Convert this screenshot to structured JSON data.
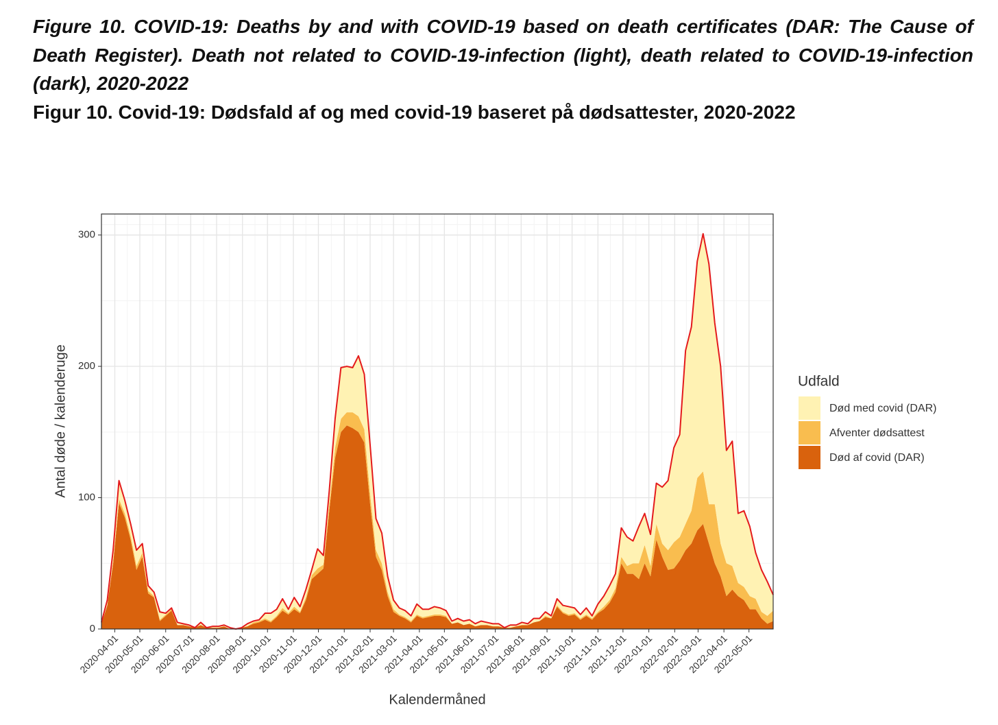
{
  "chart_data": {
    "type": "stacked-area",
    "title": "Figure 10. COVID-19: Deaths by and with COVID-19 based on death certificates (DAR: The Cause of Death Register). Death not related to COVID-19-infection (light), death related to COVID-19-infection (dark), 2020-2022",
    "subtitle": "Figur 10. Covid-19: Dødsfald af og med covid-19 baseret på dødsattester, 2020-2022",
    "x_label": "Kalendermåned",
    "y_label": "Antal døde / kalenderuge",
    "legend_title": "Udfald",
    "x": [
      "2020-03-16",
      "2020-03-23",
      "2020-03-30",
      "2020-04-06",
      "2020-04-13",
      "2020-04-20",
      "2020-04-27",
      "2020-05-04",
      "2020-05-11",
      "2020-05-18",
      "2020-05-25",
      "2020-06-01",
      "2020-06-08",
      "2020-06-15",
      "2020-06-22",
      "2020-06-29",
      "2020-07-06",
      "2020-07-13",
      "2020-07-20",
      "2020-07-27",
      "2020-08-03",
      "2020-08-10",
      "2020-08-17",
      "2020-08-24",
      "2020-08-31",
      "2020-09-07",
      "2020-09-14",
      "2020-09-21",
      "2020-09-28",
      "2020-10-05",
      "2020-10-12",
      "2020-10-19",
      "2020-10-26",
      "2020-11-02",
      "2020-11-09",
      "2020-11-16",
      "2020-11-23",
      "2020-11-30",
      "2020-12-07",
      "2020-12-14",
      "2020-12-21",
      "2020-12-28",
      "2021-01-04",
      "2021-01-11",
      "2021-01-18",
      "2021-01-25",
      "2021-02-01",
      "2021-02-08",
      "2021-02-15",
      "2021-02-22",
      "2021-03-01",
      "2021-03-08",
      "2021-03-15",
      "2021-03-22",
      "2021-03-29",
      "2021-04-05",
      "2021-04-12",
      "2021-04-19",
      "2021-04-26",
      "2021-05-03",
      "2021-05-10",
      "2021-05-17",
      "2021-05-24",
      "2021-05-31",
      "2021-06-07",
      "2021-06-14",
      "2021-06-21",
      "2021-06-28",
      "2021-07-05",
      "2021-07-12",
      "2021-07-19",
      "2021-07-26",
      "2021-08-02",
      "2021-08-09",
      "2021-08-16",
      "2021-08-23",
      "2021-08-30",
      "2021-09-06",
      "2021-09-13",
      "2021-09-20",
      "2021-09-27",
      "2021-10-04",
      "2021-10-11",
      "2021-10-18",
      "2021-10-25",
      "2021-11-01",
      "2021-11-08",
      "2021-11-15",
      "2021-11-22",
      "2021-11-29",
      "2021-12-06",
      "2021-12-13",
      "2021-12-20",
      "2021-12-27",
      "2022-01-03",
      "2022-01-10",
      "2022-01-17",
      "2022-01-24",
      "2022-01-31",
      "2022-02-07",
      "2022-02-14",
      "2022-02-21",
      "2022-02-28",
      "2022-03-07",
      "2022-03-14",
      "2022-03-21",
      "2022-03-28",
      "2022-04-04",
      "2022-04-11",
      "2022-04-18",
      "2022-04-25",
      "2022-05-02",
      "2022-05-09",
      "2022-05-16",
      "2022-05-23",
      "2022-05-30"
    ],
    "series": [
      {
        "name": "Død af covid (DAR)",
        "color": "#d9620d",
        "values": [
          4,
          18,
          50,
          96,
          85,
          68,
          45,
          55,
          27,
          24,
          6,
          10,
          14,
          3,
          3,
          2,
          1,
          3,
          1,
          1,
          1,
          2,
          0,
          0,
          1,
          2,
          4,
          5,
          7,
          5,
          9,
          14,
          11,
          15,
          12,
          22,
          38,
          42,
          46,
          90,
          130,
          150,
          155,
          153,
          150,
          142,
          95,
          55,
          45,
          25,
          13,
          10,
          8,
          5,
          10,
          8,
          9,
          10,
          10,
          9,
          4,
          5,
          3,
          4,
          2,
          3,
          3,
          2,
          2,
          1,
          1,
          2,
          3,
          3,
          5,
          6,
          9,
          8,
          17,
          12,
          10,
          11,
          7,
          10,
          7,
          12,
          15,
          20,
          28,
          50,
          42,
          42,
          38,
          50,
          40,
          68,
          55,
          45,
          46,
          52,
          60,
          65,
          75,
          80,
          65,
          50,
          40,
          25,
          30,
          25,
          22,
          15,
          15,
          8,
          4,
          6
        ]
      },
      {
        "name": "Afventer dødsattest",
        "color": "#f9bd4f",
        "values": [
          0,
          0,
          2,
          3,
          3,
          3,
          3,
          3,
          2,
          1,
          1,
          1,
          1,
          0,
          0,
          0,
          0,
          0,
          0,
          0,
          0,
          0,
          0,
          0,
          0,
          0,
          1,
          1,
          1,
          1,
          1,
          2,
          1,
          2,
          1,
          2,
          3,
          4,
          3,
          5,
          8,
          10,
          10,
          12,
          12,
          10,
          8,
          5,
          5,
          3,
          2,
          1,
          1,
          1,
          1,
          1,
          1,
          1,
          1,
          1,
          0,
          0,
          0,
          0,
          0,
          0,
          0,
          0,
          0,
          0,
          0,
          0,
          0,
          0,
          0,
          0,
          1,
          0,
          1,
          1,
          1,
          1,
          1,
          1,
          1,
          1,
          2,
          2,
          3,
          5,
          6,
          8,
          12,
          14,
          8,
          12,
          10,
          15,
          20,
          18,
          20,
          25,
          40,
          40,
          30,
          45,
          25,
          25,
          18,
          10,
          10,
          10,
          8,
          5,
          6,
          8
        ]
      },
      {
        "name": "Død med covid (DAR)",
        "color": "#fff2b3",
        "values": [
          1,
          4,
          8,
          14,
          10,
          9,
          12,
          7,
          4,
          3,
          6,
          1,
          1,
          2,
          1,
          1,
          0,
          2,
          0,
          1,
          1,
          1,
          1,
          0,
          0,
          2,
          1,
          1,
          4,
          6,
          5,
          7,
          3,
          7,
          4,
          6,
          4,
          15,
          7,
          10,
          22,
          39,
          35,
          34,
          46,
          42,
          37,
          24,
          23,
          12,
          7,
          5,
          5,
          4,
          8,
          6,
          5,
          6,
          5,
          4,
          2,
          3,
          3,
          3,
          2,
          3,
          2,
          2,
          2,
          0,
          2,
          1,
          2,
          1,
          3,
          2,
          3,
          2,
          5,
          5,
          6,
          4,
          3,
          5,
          2,
          6,
          8,
          11,
          11,
          22,
          22,
          17,
          28,
          24,
          24,
          31,
          43,
          53,
          72,
          78,
          132,
          140,
          165,
          181,
          183,
          138,
          135,
          86,
          95,
          53,
          58,
          53,
          35,
          32,
          26,
          12
        ]
      }
    ],
    "line_color": "#e41a1c",
    "xlim": [
      "2020-03-16",
      "2022-05-30"
    ],
    "xticks": [
      "2020-04-01",
      "2020-05-01",
      "2020-06-01",
      "2020-07-01",
      "2020-08-01",
      "2020-09-01",
      "2020-10-01",
      "2020-11-01",
      "2020-12-01",
      "2021-01-01",
      "2021-02-01",
      "2021-03-01",
      "2021-04-01",
      "2021-05-01",
      "2021-06-01",
      "2021-07-01",
      "2021-08-01",
      "2021-09-01",
      "2021-10-01",
      "2021-11-01",
      "2021-12-01",
      "2022-01-01",
      "2022-02-01",
      "2022-03-01",
      "2022-04-01",
      "2022-05-01"
    ],
    "ylim": [
      0,
      316
    ],
    "yticks": [
      0,
      100,
      200,
      300
    ],
    "grid": true,
    "legend_position": "right"
  }
}
